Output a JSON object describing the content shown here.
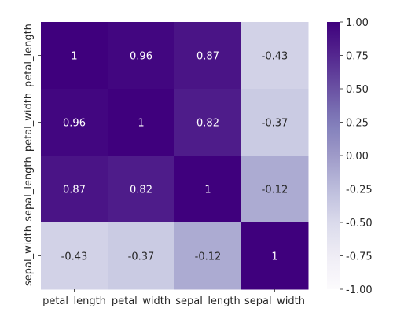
{
  "chart_data": {
    "type": "heatmap",
    "x_categories": [
      "petal_length",
      "petal_width",
      "sepal_length",
      "sepal_width"
    ],
    "y_categories": [
      "petal_length",
      "petal_width",
      "sepal_length",
      "sepal_width"
    ],
    "values": [
      [
        1,
        0.96,
        0.87,
        -0.43
      ],
      [
        0.96,
        1,
        0.82,
        -0.37
      ],
      [
        0.87,
        0.82,
        1,
        -0.12
      ],
      [
        -0.43,
        -0.37,
        -0.12,
        1
      ]
    ],
    "value_labels": [
      [
        "1",
        "0.96",
        "0.87",
        "-0.43"
      ],
      [
        "0.96",
        "1",
        "0.82",
        "-0.37"
      ],
      [
        "0.87",
        "0.82",
        "1",
        "-0.12"
      ],
      [
        "-0.43",
        "-0.37",
        "-0.12",
        "1"
      ]
    ],
    "vmin": -1,
    "vmax": 1,
    "colormap": "Purples",
    "colorbar_ticks": [
      "1.00",
      "0.75",
      "0.50",
      "0.25",
      "0.00",
      "-0.25",
      "-0.50",
      "-0.75",
      "-1.00"
    ],
    "colorbar_tick_values": [
      1.0,
      0.75,
      0.5,
      0.25,
      0.0,
      -0.25,
      -0.5,
      -0.75,
      -1.0
    ],
    "title": "",
    "xlabel": "",
    "ylabel": ""
  }
}
